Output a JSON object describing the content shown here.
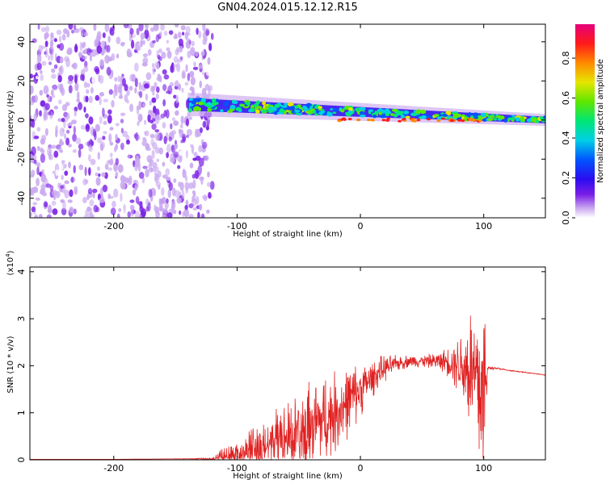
{
  "title": "GN04.2024.015.12.12.R15",
  "chart_data": [
    {
      "type": "heatmap",
      "panel": "spectrogram",
      "xlabel": "Height of straight line (km)",
      "ylabel": "Frequency (Hz)",
      "xlim": [
        -268,
        150
      ],
      "ylim": [
        -50,
        49
      ],
      "xticks": [
        -200,
        -100,
        0,
        100
      ],
      "yticks": [
        40,
        20,
        0,
        -20,
        -40
      ],
      "colorbar": {
        "label": "Normalized spectral amplitude",
        "range": [
          0,
          0.97
        ],
        "ticks": [
          "0.0",
          "0.2",
          "0.4",
          "0.6",
          "0.8"
        ],
        "colormap": [
          "#ffffff",
          "#c9a8f0",
          "#7a1fe6",
          "#2a0cf0",
          "#0055ff",
          "#00cfe6",
          "#00e676",
          "#5fe600",
          "#e6e600",
          "#ff8a00",
          "#ff1a1a",
          "#e6007a"
        ]
      },
      "regions": [
        {
          "name": "noise",
          "x_range": [
            -268,
            -120
          ],
          "freq_range": [
            -50,
            49
          ],
          "amplitude": 0.12
        },
        {
          "name": "trail",
          "x_range": [
            -140,
            150
          ],
          "freq_center_start": 8,
          "freq_center_end": 0,
          "amplitude": 0.6
        },
        {
          "name": "bright-spots",
          "x_range": [
            -20,
            100
          ],
          "freq_center": 0,
          "amplitude": 0.9
        }
      ]
    },
    {
      "type": "line",
      "panel": "snr",
      "xlabel": "Height of straight line (km)",
      "ylabel": "SNR (10 * v/v)",
      "scale_label": "(x10",
      "scale_exp": "4",
      "scale_close": ")",
      "xlim": [
        -268,
        150
      ],
      "ylim": [
        0,
        4.1
      ],
      "xticks": [
        -200,
        -100,
        0,
        100
      ],
      "yticks": [
        0,
        1,
        2,
        3,
        4
      ],
      "color": "#e02020",
      "series": [
        {
          "x": [
            -268,
            -200,
            -150,
            -120,
            -112,
            -100,
            -90,
            -80,
            -70,
            -60,
            -50,
            -40,
            -30,
            -20,
            -10,
            0,
            10,
            20,
            30,
            40,
            50,
            60,
            70,
            80,
            90,
            95,
            100,
            103,
            110,
            120,
            130,
            140,
            150
          ],
          "y": [
            0.01,
            0.01,
            0.02,
            0.02,
            0.05,
            0.15,
            0.2,
            0.25,
            0.35,
            0.45,
            0.55,
            0.7,
            0.85,
            1.0,
            1.25,
            1.5,
            1.75,
            1.95,
            2.05,
            2.1,
            2.1,
            2.1,
            2.1,
            2.05,
            1.9,
            1.6,
            1.2,
            1.95,
            1.95,
            1.9,
            1.87,
            1.84,
            1.8
          ],
          "spread": [
            0,
            0,
            0,
            0.02,
            0.2,
            0.3,
            0.4,
            0.5,
            0.6,
            0.7,
            0.8,
            0.9,
            0.9,
            0.8,
            0.7,
            0.5,
            0.35,
            0.25,
            0.15,
            0.12,
            0.12,
            0.15,
            0.25,
            0.6,
            1.4,
            1.8,
            2.2,
            0.05,
            0.02,
            0.01,
            0.01,
            0.01,
            0.01
          ]
        }
      ]
    }
  ]
}
